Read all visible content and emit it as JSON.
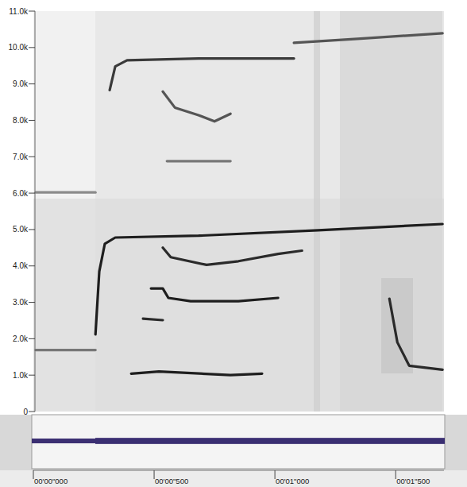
{
  "chart_data": {
    "type": "spectrogram",
    "xlim": [
      0,
      1.7
    ],
    "xticks": [
      {
        "value": 0,
        "label": "00'00\"000"
      },
      {
        "value": 0.5,
        "label": "00'00\"500"
      },
      {
        "value": 1.0,
        "label": "00'01\"000"
      },
      {
        "value": 1.5,
        "label": "00'01\"500"
      }
    ],
    "ylim": [
      0,
      11000
    ],
    "yticks": [
      0,
      {
        "value": 1000,
        "label": "1.0k"
      },
      {
        "value": 2000,
        "label": "2.0k"
      },
      {
        "value": 3000,
        "label": "3.0k"
      },
      {
        "value": 4000,
        "label": "4.0k"
      },
      {
        "value": 5000,
        "label": "5.0k"
      },
      {
        "value": 6000,
        "label": "6.0k"
      },
      {
        "value": 7000,
        "label": "7.0k"
      },
      {
        "value": 8000,
        "label": "8.0k"
      },
      {
        "value": 9000,
        "label": "9.0k"
      },
      {
        "value": 10000,
        "label": "10.0k"
      },
      {
        "value": 11000,
        "label": "11.0k"
      }
    ],
    "series": [
      {
        "color": "#1e1e1e",
        "x": [
          0.257,
          0.273,
          0.296,
          0.339,
          0.684,
          1.178,
          1.694
        ],
        "values": [
          2120,
          3850,
          4610,
          4780,
          4830,
          4980,
          5150
        ]
      },
      {
        "color": "#3a3a3a",
        "x": [
          0.316,
          0.339,
          0.388,
          0.684,
          1.079
        ],
        "values": [
          8830,
          9480,
          9650,
          9700,
          9700
        ]
      },
      {
        "color": "#555555",
        "x": [
          1.079,
          1.342,
          1.694
        ],
        "values": [
          10130,
          10240,
          10390
        ]
      },
      {
        "color": "#2a2a2a",
        "x": [
          0.536,
          0.569,
          0.717,
          0.849,
          1.013,
          1.112
        ],
        "values": [
          4500,
          4240,
          4030,
          4130,
          4330,
          4420
        ]
      },
      {
        "color": "#1e1e1e",
        "x": [
          0.487,
          0.536,
          0.559,
          0.651,
          0.849,
          1.013
        ],
        "values": [
          3380,
          3380,
          3120,
          3030,
          3030,
          3120
        ]
      },
      {
        "color": "#1e1e1e",
        "x": [
          0.405,
          0.52,
          0.816,
          0.947
        ],
        "values": [
          1040,
          1100,
          1000,
          1040
        ]
      },
      {
        "color": "#2a2a2a",
        "x": [
          0.454,
          0.536
        ],
        "values": [
          2550,
          2510
        ]
      },
      {
        "color": "#2a2a2a",
        "x": [
          1.474,
          1.507,
          1.556,
          1.694
        ],
        "values": [
          3100,
          1900,
          1260,
          1150
        ]
      },
      {
        "color": "#555555",
        "x": [
          0.536,
          0.586,
          0.684,
          0.75,
          0.816
        ],
        "values": [
          8790,
          8350,
          8140,
          7970,
          8180
        ]
      },
      {
        "color": "#8a8a8a",
        "x": [
          0.01,
          0.257
        ],
        "values": [
          6020,
          6020
        ]
      },
      {
        "color": "#777777",
        "x": [
          0.01,
          0.257
        ],
        "values": [
          1690,
          1690
        ]
      },
      {
        "color": "#777777",
        "x": [
          0.553,
          0.816
        ],
        "values": [
          6880,
          6880
        ]
      }
    ]
  }
}
